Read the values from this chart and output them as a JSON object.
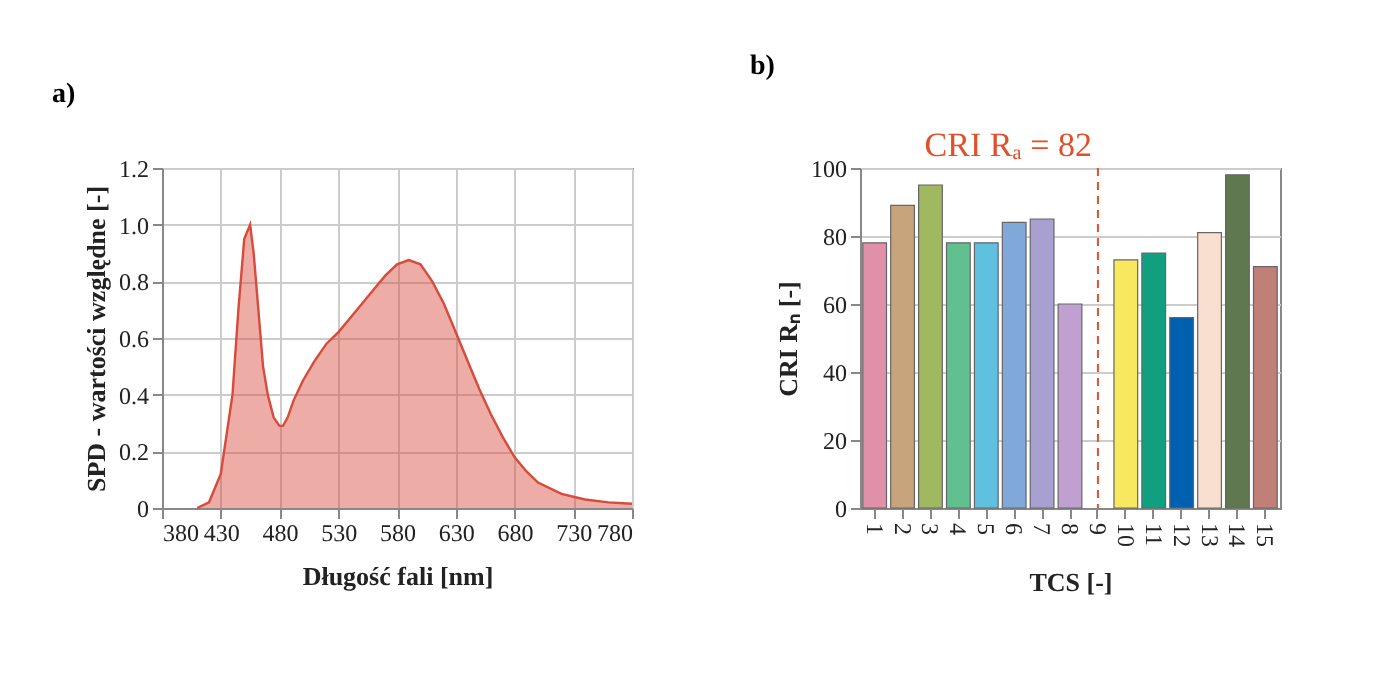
{
  "chart_data": [
    {
      "type": "area",
      "title": "a)",
      "xlabel": "Długość fali [nm]",
      "ylabel": "SPD - wartości względne [-]",
      "series": [
        {
          "color": "#d84a3a",
          "x": [
            410,
            420,
            430,
            440,
            445,
            450,
            455,
            458,
            462,
            466,
            470,
            475,
            480,
            483,
            487,
            492,
            500,
            510,
            520,
            530,
            540,
            550,
            560,
            570,
            580,
            590,
            600,
            610,
            620,
            630,
            640,
            650,
            660,
            670,
            680,
            690,
            700,
            720,
            740,
            760,
            780
          ],
          "values": [
            0,
            0.02,
            0.12,
            0.4,
            0.7,
            0.95,
            1.0,
            0.9,
            0.7,
            0.5,
            0.4,
            0.32,
            0.29,
            0.29,
            0.32,
            0.38,
            0.45,
            0.52,
            0.58,
            0.62,
            0.67,
            0.72,
            0.77,
            0.82,
            0.86,
            0.875,
            0.86,
            0.8,
            0.72,
            0.62,
            0.52,
            0.42,
            0.33,
            0.25,
            0.18,
            0.13,
            0.09,
            0.05,
            0.03,
            0.02,
            0.015
          ]
        }
      ],
      "xlim": [
        380,
        780
      ],
      "xticks": [
        380,
        430,
        480,
        530,
        580,
        630,
        680,
        730,
        780
      ],
      "ylim": [
        0,
        1.2
      ],
      "yticks": [
        0,
        0.2,
        0.4,
        0.6,
        0.8,
        {
          "value": 1,
          "label": "1.0"
        },
        1.2
      ],
      "grid": true
    },
    {
      "type": "bar",
      "title": "b)",
      "xlabel": "TCS [-]",
      "ylabel": "CRI Rₙ [-]",
      "categories": [
        "1",
        "2",
        "3",
        "4",
        "5",
        "6",
        "7",
        "8",
        "9",
        "10",
        "11",
        "12",
        "13",
        "14",
        "15"
      ],
      "values": [
        78,
        89,
        95,
        78,
        78,
        84,
        85,
        60,
        null,
        73,
        75,
        56,
        81,
        98,
        71
      ],
      "colors": [
        "#e090a8",
        "#c8a47c",
        "#a0b860",
        "#60c090",
        "#60c0e0",
        "#80a8d8",
        "#a8a0d0",
        "#c0a0d0",
        "#ffffff",
        "#f8e860",
        "#10a080",
        "#0060b0",
        "#f8e0d0",
        "#607850",
        "#c08078"
      ],
      "ylim": [
        0,
        100
      ],
      "yticks": [
        0,
        20,
        40,
        60,
        80,
        100
      ],
      "grid": "y",
      "ref_lines": [
        {
          "axis": "x",
          "value": "9",
          "label": "CRI Rₐ = 82",
          "color": "#e0502a",
          "line_style": "dashed"
        }
      ]
    }
  ]
}
